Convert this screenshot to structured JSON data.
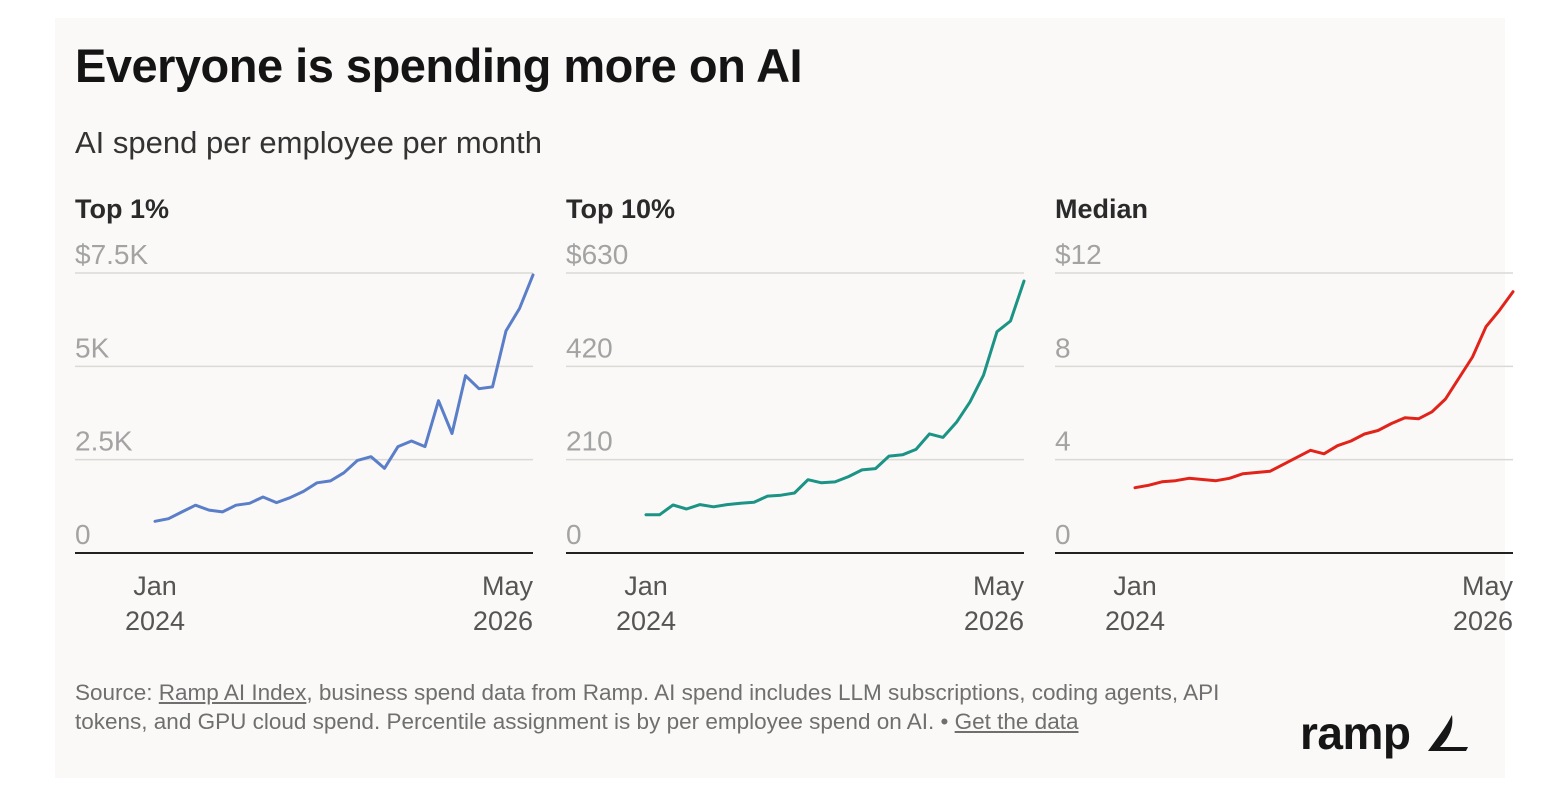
{
  "title": "Everyone is spending more on AI",
  "subtitle": "AI spend per employee per month",
  "footer": {
    "source_prefix": "Source: ",
    "source_link": "Ramp AI Index",
    "source_text": ", business spend data from Ramp. AI spend includes LLM subscriptions, coding agents, API tokens, and GPU cloud spend. Percentile assignment is by per employee spend on AI. • ",
    "get_data_link": "Get the data"
  },
  "logo": {
    "text": "ramp",
    "icon": "ramp-wing-icon"
  },
  "chart_data": [
    {
      "type": "line",
      "title": "Top 1%",
      "color": "#5b7ec9",
      "x_tick_labels": [
        [
          "Jan",
          "2024"
        ],
        [
          "May",
          "2026"
        ]
      ],
      "y_tick_labels": [
        "0",
        "2.5K",
        "5K",
        "$7.5K"
      ],
      "y_ticks": [
        0,
        2500,
        5000,
        7500
      ],
      "ylim": [
        0,
        7500
      ],
      "x": [
        "2024-01",
        "2024-02",
        "2024-03",
        "2024-04",
        "2024-05",
        "2024-06",
        "2024-07",
        "2024-08",
        "2024-09",
        "2024-10",
        "2024-11",
        "2024-12",
        "2025-01",
        "2025-02",
        "2025-03",
        "2025-04",
        "2025-05",
        "2025-06",
        "2025-07",
        "2025-08",
        "2025-09",
        "2025-10",
        "2025-11",
        "2025-12",
        "2026-01",
        "2026-02",
        "2026-03",
        "2026-04",
        "2026-05"
      ],
      "values": [
        850,
        920,
        1100,
        1280,
        1150,
        1100,
        1280,
        1330,
        1500,
        1350,
        1480,
        1650,
        1880,
        1930,
        2150,
        2480,
        2580,
        2270,
        2850,
        3000,
        2850,
        4080,
        3200,
        4750,
        4400,
        4450,
        5950,
        6550,
        7450
      ]
    },
    {
      "type": "line",
      "title": "Top 10%",
      "color": "#1b9385",
      "x_tick_labels": [
        [
          "Jan",
          "2024"
        ],
        [
          "May",
          "2026"
        ]
      ],
      "y_tick_labels": [
        "0",
        "210",
        "420",
        "$630"
      ],
      "y_ticks": [
        0,
        210,
        420,
        630
      ],
      "ylim": [
        0,
        630
      ],
      "x": [
        "2024-01",
        "2024-02",
        "2024-03",
        "2024-04",
        "2024-05",
        "2024-06",
        "2024-07",
        "2024-08",
        "2024-09",
        "2024-10",
        "2024-11",
        "2024-12",
        "2025-01",
        "2025-02",
        "2025-03",
        "2025-04",
        "2025-05",
        "2025-06",
        "2025-07",
        "2025-08",
        "2025-09",
        "2025-10",
        "2025-11",
        "2025-12",
        "2026-01",
        "2026-02",
        "2026-03",
        "2026-04",
        "2026-05"
      ],
      "values": [
        86,
        86,
        108,
        99,
        109,
        104,
        109,
        112,
        114,
        128,
        130,
        135,
        165,
        158,
        160,
        172,
        187,
        190,
        218,
        221,
        233,
        268,
        260,
        294,
        340,
        400,
        498,
        522,
        612
      ]
    },
    {
      "type": "line",
      "title": "Median",
      "color": "#e2231a",
      "x_tick_labels": [
        [
          "Jan",
          "2024"
        ],
        [
          "May",
          "2026"
        ]
      ],
      "y_tick_labels": [
        "0",
        "4",
        "8",
        "$12"
      ],
      "y_ticks": [
        0,
        4,
        8,
        12
      ],
      "ylim": [
        0,
        12
      ],
      "x": [
        "2024-01",
        "2024-02",
        "2024-03",
        "2024-04",
        "2024-05",
        "2024-06",
        "2024-07",
        "2024-08",
        "2024-09",
        "2024-10",
        "2024-11",
        "2024-12",
        "2025-01",
        "2025-02",
        "2025-03",
        "2025-04",
        "2025-05",
        "2025-06",
        "2025-07",
        "2025-08",
        "2025-09",
        "2025-10",
        "2025-11",
        "2025-12",
        "2026-01",
        "2026-02",
        "2026-03",
        "2026-04",
        "2026-05"
      ],
      "values": [
        2.8,
        2.9,
        3.05,
        3.1,
        3.2,
        3.15,
        3.1,
        3.2,
        3.4,
        3.45,
        3.5,
        3.8,
        4.1,
        4.4,
        4.25,
        4.6,
        4.8,
        5.1,
        5.25,
        5.55,
        5.8,
        5.75,
        6.05,
        6.6,
        7.5,
        8.4,
        9.7,
        10.4,
        11.2
      ]
    }
  ]
}
